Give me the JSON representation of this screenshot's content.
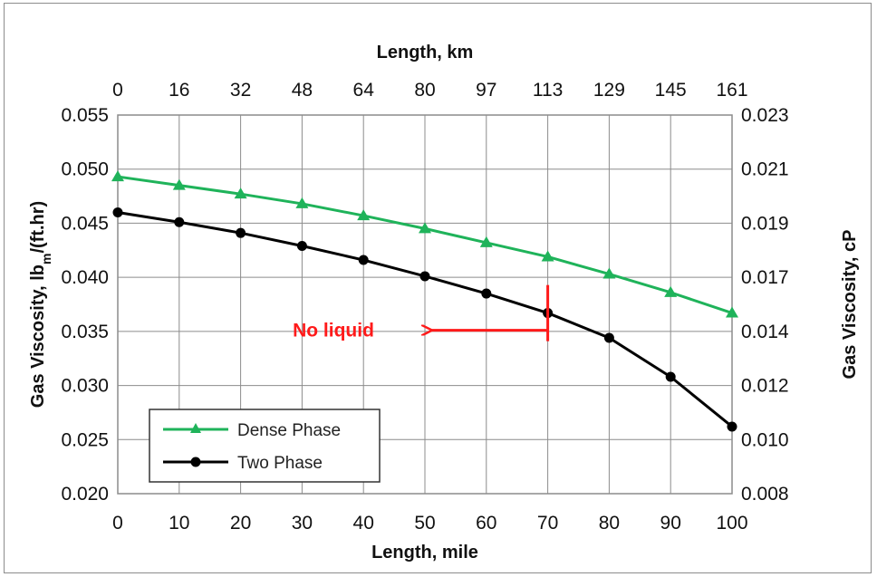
{
  "chart_data": {
    "type": "line",
    "x": [
      0,
      10,
      20,
      30,
      40,
      50,
      60,
      70,
      80,
      90,
      100
    ],
    "xlabel": "Length, mile",
    "xlim": [
      0,
      100
    ],
    "x_tick_labels": [
      "0",
      "10",
      "20",
      "30",
      "40",
      "50",
      "60",
      "70",
      "80",
      "90",
      "100"
    ],
    "x2label": "Length, km",
    "x2_tick_labels": [
      "0",
      "16",
      "32",
      "48",
      "64",
      "80",
      "97",
      "113",
      "129",
      "145",
      "161"
    ],
    "ylabel": "Gas Viscosity, lbm/(ft.hr)",
    "ylabel_main": "Gas Viscosity, lb",
    "ylabel_sub": "m",
    "ylabel_rest": "/(ft.hr)",
    "ylim": [
      0.02,
      0.055
    ],
    "y_tick_labels": [
      "0.020",
      "0.025",
      "0.030",
      "0.035",
      "0.040",
      "0.045",
      "0.050",
      "0.055"
    ],
    "y2label": "Gas Viscosity, cP",
    "y2_tick_labels": [
      "0.008",
      "0.010",
      "0.012",
      "0.014",
      "0.017",
      "0.019",
      "0.021",
      "0.023"
    ],
    "grid": true,
    "legend_position": "bottom-left",
    "series": [
      {
        "name": "Dense Phase",
        "color": "#1fb35a",
        "marker": "triangle",
        "values": [
          0.0493,
          0.0485,
          0.0477,
          0.0468,
          0.0457,
          0.0445,
          0.0432,
          0.0419,
          0.0403,
          0.0386,
          0.0367
        ]
      },
      {
        "name": "Two Phase",
        "color": "#000000",
        "marker": "circle",
        "values": [
          0.046,
          0.0451,
          0.0441,
          0.0429,
          0.0416,
          0.0401,
          0.0385,
          0.0367,
          0.0344,
          0.0308,
          0.0262
        ]
      }
    ],
    "annotations": [
      {
        "text": "No liquid",
        "color": "#ff1a1a",
        "at_x": 70,
        "arrow_to_x": 50,
        "y": 0.0351
      }
    ]
  }
}
